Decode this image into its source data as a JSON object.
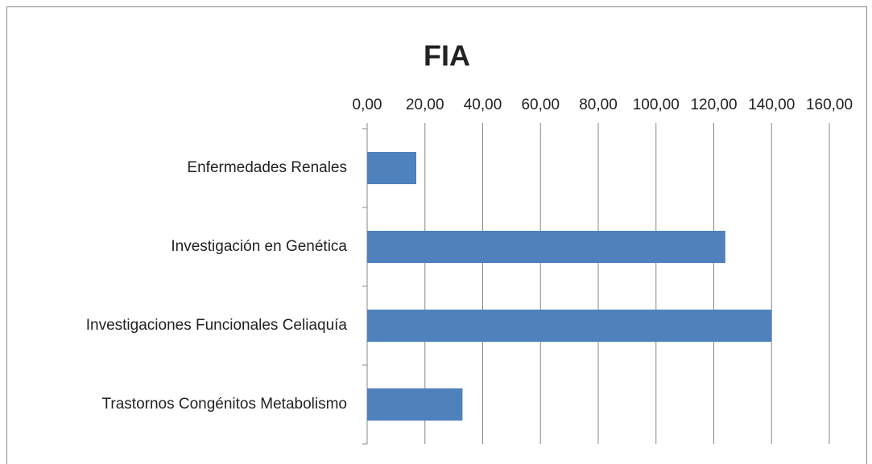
{
  "chart_data": {
    "type": "bar",
    "orientation": "horizontal",
    "title": "FIA",
    "categories": [
      "Enfermedades Renales",
      "Investigación en Genética",
      "Investigaciones Funcionales Celiaquía",
      "Trastornos Congénitos Metabolismo"
    ],
    "values": [
      17,
      124,
      140,
      33
    ],
    "color": "#4f81bd",
    "xlim": [
      0,
      160
    ],
    "xticks": [
      {
        "value": 0,
        "label": "0,00"
      },
      {
        "value": 20,
        "label": "20,00"
      },
      {
        "value": 40,
        "label": "40,00"
      },
      {
        "value": 60,
        "label": "60,00"
      },
      {
        "value": 80,
        "label": "80,00"
      },
      {
        "value": 100,
        "label": "100,00"
      },
      {
        "value": 120,
        "label": "120,00"
      },
      {
        "value": 140,
        "label": "140,00"
      },
      {
        "value": 160,
        "label": "160,00"
      }
    ],
    "grid": true
  }
}
